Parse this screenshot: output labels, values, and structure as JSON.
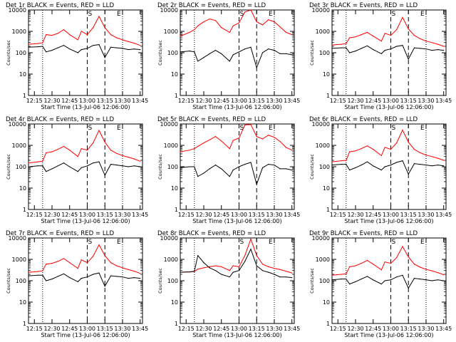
{
  "chart_data": [
    {
      "type": "line",
      "title": "Det 1r BLACK = Events, RED = LLD",
      "xlabel": "Start Time (13-Jul-06 12:06:00)",
      "ylabel": "Counts/sec",
      "yscale": "log",
      "ylim": [
        1,
        10000
      ],
      "xlim": [
        "12:10",
        "13:47"
      ],
      "xticks": [
        "12:15",
        "12:30",
        "12:45",
        "13:00",
        "13:15",
        "13:30",
        "13:45"
      ],
      "yticks": [
        "1",
        "10",
        "100",
        "1000",
        "10000"
      ],
      "event_markers": [
        "S",
        "E"
      ],
      "x": [
        "12:10",
        "12:18",
        "12:22",
        "12:25",
        "12:30",
        "12:35",
        "12:40",
        "12:45",
        "12:52",
        "12:55",
        "13:00",
        "13:05",
        "13:10",
        "13:15",
        "13:20",
        "13:25",
        "13:30",
        "13:35",
        "13:40",
        "13:45"
      ],
      "series": [
        {
          "name": "RED = LLD",
          "color": "#ff0000",
          "values": [
            250,
            270,
            290,
            700,
            650,
            800,
            1200,
            700,
            400,
            1000,
            700,
            1500,
            5000,
            1500,
            700,
            500,
            400,
            330,
            280,
            220
          ]
        },
        {
          "name": "BLACK = Events",
          "color": "#000000",
          "values": [
            180,
            190,
            200,
            110,
            130,
            170,
            220,
            150,
            100,
            140,
            160,
            220,
            240,
            60,
            180,
            170,
            160,
            140,
            150,
            140
          ]
        }
      ]
    },
    {
      "type": "line",
      "title": "Det 2r BLACK = Events, RED = LLD",
      "xlabel": "Start Time (13-Jul-06 12:06:00)",
      "ylabel": "Counts/sec",
      "yscale": "log",
      "ylim": [
        1,
        10000
      ],
      "xlim": [
        "12:10",
        "13:47"
      ],
      "xticks": [
        "12:15",
        "12:30",
        "12:45",
        "13:00",
        "13:15",
        "13:30",
        "13:45"
      ],
      "yticks": [
        "1",
        "10",
        "100",
        "1000",
        "10000"
      ],
      "event_markers": [
        "S",
        "E"
      ],
      "x": [
        "12:10",
        "12:18",
        "12:22",
        "12:25",
        "12:30",
        "12:35",
        "12:40",
        "12:45",
        "12:52",
        "12:55",
        "13:00",
        "13:05",
        "13:10",
        "13:15",
        "13:20",
        "13:25",
        "13:30",
        "13:35",
        "13:40",
        "13:45"
      ],
      "series": [
        {
          "name": "RED = LLD",
          "color": "#ff0000",
          "values": [
            600,
            900,
            1200,
            1800,
            2800,
            3800,
            3200,
            1500,
            900,
            1800,
            2500,
            8000,
            10000,
            2800,
            2000,
            3500,
            2800,
            1600,
            900,
            700
          ]
        },
        {
          "name": "BLACK = Events",
          "color": "#000000",
          "values": [
            110,
            120,
            110,
            40,
            60,
            90,
            130,
            90,
            40,
            80,
            110,
            150,
            180,
            20,
            100,
            150,
            130,
            90,
            90,
            80
          ]
        }
      ]
    },
    {
      "type": "line",
      "title": "Det 3r BLACK = Events, RED = LLD",
      "xlabel": "Start Time (13-Jul-06 12:06:00)",
      "ylabel": "Counts/sec",
      "yscale": "log",
      "ylim": [
        1,
        10000
      ],
      "xlim": [
        "12:10",
        "13:47"
      ],
      "xticks": [
        "12:15",
        "12:30",
        "12:45",
        "13:00",
        "13:15",
        "13:30",
        "13:45"
      ],
      "yticks": [
        "1",
        "10",
        "100",
        "1000",
        "10000"
      ],
      "event_markers": [
        "S",
        "E"
      ],
      "x": [
        "12:10",
        "12:18",
        "12:22",
        "12:25",
        "12:30",
        "12:35",
        "12:40",
        "12:45",
        "12:52",
        "12:55",
        "13:00",
        "13:05",
        "13:10",
        "13:15",
        "13:20",
        "13:25",
        "13:30",
        "13:35",
        "13:40",
        "13:45"
      ],
      "series": [
        {
          "name": "RED = LLD",
          "color": "#ff0000",
          "values": [
            230,
            250,
            270,
            500,
            550,
            700,
            900,
            600,
            350,
            800,
            650,
            1200,
            4500,
            1300,
            650,
            450,
            350,
            300,
            250,
            200
          ]
        },
        {
          "name": "BLACK = Events",
          "color": "#000000",
          "values": [
            160,
            170,
            170,
            100,
            120,
            160,
            210,
            140,
            90,
            130,
            150,
            200,
            220,
            50,
            170,
            160,
            150,
            130,
            140,
            130
          ]
        }
      ]
    },
    {
      "type": "line",
      "title": "Det 4r BLACK = Events, RED = LLD",
      "xlabel": "Start Time (13-Jul-06 12:06:00)",
      "ylabel": "Counts/sec",
      "yscale": "log",
      "ylim": [
        1,
        10000
      ],
      "xlim": [
        "12:10",
        "13:47"
      ],
      "xticks": [
        "12:15",
        "12:30",
        "12:45",
        "13:00",
        "13:15",
        "13:30",
        "13:45"
      ],
      "yticks": [
        "1",
        "10",
        "100",
        "1000",
        "10000"
      ],
      "event_markers": [
        "S",
        "E"
      ],
      "x": [
        "12:10",
        "12:18",
        "12:22",
        "12:25",
        "12:30",
        "12:35",
        "12:40",
        "12:45",
        "12:52",
        "12:55",
        "13:00",
        "13:05",
        "13:10",
        "13:15",
        "13:20",
        "13:25",
        "13:30",
        "13:35",
        "13:40",
        "13:45"
      ],
      "series": [
        {
          "name": "RED = LLD",
          "color": "#ff0000",
          "values": [
            150,
            170,
            180,
            450,
            500,
            650,
            900,
            600,
            300,
            700,
            600,
            1300,
            5000,
            1400,
            600,
            420,
            330,
            280,
            230,
            180
          ]
        },
        {
          "name": "BLACK = Events",
          "color": "#000000",
          "values": [
            100,
            110,
            110,
            60,
            80,
            110,
            150,
            100,
            60,
            90,
            110,
            150,
            170,
            40,
            130,
            120,
            110,
            100,
            110,
            100
          ]
        }
      ]
    },
    {
      "type": "line",
      "title": "Det 5r BLACK = Events, RED = LLD",
      "xlabel": "Start Time (13-Jul-06 12:06:00)",
      "ylabel": "Counts/sec",
      "yscale": "log",
      "ylim": [
        1,
        10000
      ],
      "xlim": [
        "12:10",
        "13:47"
      ],
      "xticks": [
        "12:15",
        "12:30",
        "12:45",
        "13:00",
        "13:15",
        "13:30",
        "13:45"
      ],
      "yticks": [
        "1",
        "10",
        "100",
        "1000",
        "10000"
      ],
      "event_markers": [
        "S",
        "E"
      ],
      "x": [
        "12:10",
        "12:18",
        "12:22",
        "12:25",
        "12:30",
        "12:35",
        "12:40",
        "12:45",
        "12:52",
        "12:55",
        "13:00",
        "13:05",
        "13:10",
        "13:15",
        "13:20",
        "13:25",
        "13:30",
        "13:35",
        "13:40",
        "13:45"
      ],
      "series": [
        {
          "name": "RED = LLD",
          "color": "#ff0000",
          "values": [
            500,
            600,
            700,
            900,
            1300,
            1800,
            2600,
            1600,
            700,
            1700,
            2200,
            9000,
            9500,
            2600,
            2000,
            3000,
            2400,
            1500,
            800,
            600
          ]
        },
        {
          "name": "BLACK = Events",
          "color": "#000000",
          "values": [
            90,
            100,
            100,
            35,
            50,
            80,
            120,
            80,
            35,
            70,
            100,
            130,
            160,
            15,
            90,
            130,
            120,
            80,
            80,
            70
          ]
        }
      ]
    },
    {
      "type": "line",
      "title": "Det 6r BLACK = Events, RED = LLD",
      "xlabel": "Start Time (13-Jul-06 12:06:00)",
      "ylabel": "Counts/sec",
      "yscale": "log",
      "ylim": [
        1,
        10000
      ],
      "xlim": [
        "12:10",
        "13:47"
      ],
      "xticks": [
        "12:15",
        "12:30",
        "12:45",
        "13:00",
        "13:15",
        "13:30",
        "13:45"
      ],
      "yticks": [
        "1",
        "10",
        "100",
        "1000",
        "10000"
      ],
      "event_markers": [
        "S",
        "E"
      ],
      "x": [
        "12:10",
        "12:18",
        "12:22",
        "12:25",
        "12:30",
        "12:35",
        "12:40",
        "12:45",
        "12:52",
        "12:55",
        "13:00",
        "13:05",
        "13:10",
        "13:15",
        "13:20",
        "13:25",
        "13:30",
        "13:35",
        "13:40",
        "13:45"
      ],
      "series": [
        {
          "name": "RED = LLD",
          "color": "#ff0000",
          "values": [
            170,
            190,
            200,
            500,
            550,
            700,
            950,
            650,
            330,
            800,
            650,
            1300,
            5200,
            1400,
            650,
            450,
            350,
            300,
            250,
            200
          ]
        },
        {
          "name": "BLACK = Events",
          "color": "#000000",
          "values": [
            120,
            130,
            130,
            70,
            90,
            120,
            170,
            110,
            70,
            100,
            120,
            160,
            190,
            45,
            140,
            130,
            120,
            110,
            120,
            110
          ]
        }
      ]
    },
    {
      "type": "line",
      "title": "Det 7r BLACK = Events, RED = LLD",
      "xlabel": "Start Time (13-Jul-06 12:06:00)",
      "ylabel": "Counts/sec",
      "yscale": "log",
      "ylim": [
        1,
        10000
      ],
      "xlim": [
        "12:10",
        "13:47"
      ],
      "xticks": [
        "12:15",
        "12:30",
        "12:45",
        "13:00",
        "13:15",
        "13:30",
        "13:45"
      ],
      "yticks": [
        "1",
        "10",
        "100",
        "1000",
        "10000"
      ],
      "event_markers": [
        "S",
        "E"
      ],
      "x": [
        "12:10",
        "12:18",
        "12:22",
        "12:25",
        "12:30",
        "12:35",
        "12:40",
        "12:45",
        "12:52",
        "12:55",
        "13:00",
        "13:05",
        "13:10",
        "13:15",
        "13:20",
        "13:25",
        "13:30",
        "13:35",
        "13:40",
        "13:45"
      ],
      "series": [
        {
          "name": "RED = LLD",
          "color": "#ff0000",
          "values": [
            250,
            270,
            290,
            600,
            650,
            800,
            1100,
            700,
            380,
            950,
            700,
            1400,
            4800,
            1500,
            700,
            500,
            400,
            330,
            280,
            220
          ]
        },
        {
          "name": "BLACK = Events",
          "color": "#000000",
          "values": [
            170,
            180,
            180,
            100,
            120,
            160,
            210,
            140,
            90,
            130,
            150,
            200,
            230,
            55,
            170,
            160,
            150,
            130,
            140,
            130
          ]
        }
      ]
    },
    {
      "type": "line",
      "title": "Det 8r BLACK = Events, RED = LLD",
      "xlabel": "Start Time (13-Jul-06 12:06:00)",
      "ylabel": "Counts/sec",
      "yscale": "log",
      "ylim": [
        1,
        10000
      ],
      "xlim": [
        "12:10",
        "13:47"
      ],
      "xticks": [
        "12:15",
        "12:30",
        "12:45",
        "13:00",
        "13:15",
        "13:30",
        "13:45"
      ],
      "yticks": [
        "1",
        "10",
        "100",
        "1000",
        "10000"
      ],
      "event_markers": [
        "S",
        "E"
      ],
      "x": [
        "12:10",
        "12:18",
        "12:22",
        "12:25",
        "12:30",
        "12:35",
        "12:40",
        "12:45",
        "12:52",
        "12:55",
        "13:00",
        "13:05",
        "13:10",
        "13:15",
        "13:20",
        "13:25",
        "13:30",
        "13:35",
        "13:40",
        "13:45"
      ],
      "series": [
        {
          "name": "RED = LLD",
          "color": "#ff0000",
          "values": [
            250,
            260,
            270,
            350,
            400,
            450,
            500,
            450,
            300,
            500,
            450,
            1500,
            9000,
            1500,
            600,
            450,
            380,
            330,
            280,
            230
          ]
        },
        {
          "name": "BLACK = Events",
          "color": "#000000",
          "values": [
            250,
            260,
            280,
            1500,
            700,
            400,
            300,
            200,
            150,
            250,
            300,
            800,
            3000,
            500,
            300,
            250,
            200,
            150,
            150,
            140
          ]
        }
      ]
    },
    {
      "type": "line",
      "title": "Det 9r BLACK = Events, RED = LLD",
      "xlabel": "Start Time (13-Jul-06 12:06:00)",
      "ylabel": "Counts/sec",
      "yscale": "log",
      "ylim": [
        1,
        10000
      ],
      "xlim": [
        "12:10",
        "13:47"
      ],
      "xticks": [
        "12:15",
        "12:30",
        "12:45",
        "13:00",
        "13:15",
        "13:30",
        "13:45"
      ],
      "yticks": [
        "1",
        "10",
        "100",
        "1000",
        "10000"
      ],
      "event_markers": [
        "S",
        "E"
      ],
      "x": [
        "12:10",
        "12:18",
        "12:22",
        "12:25",
        "12:30",
        "12:35",
        "12:40",
        "12:45",
        "12:52",
        "12:55",
        "13:00",
        "13:05",
        "13:10",
        "13:15",
        "13:20",
        "13:25",
        "13:30",
        "13:35",
        "13:40",
        "13:45"
      ],
      "series": [
        {
          "name": "RED = LLD",
          "color": "#ff0000",
          "values": [
            180,
            200,
            210,
            450,
            500,
            650,
            900,
            600,
            320,
            750,
            650,
            1200,
            4000,
            1300,
            600,
            430,
            340,
            290,
            240,
            190
          ]
        },
        {
          "name": "BLACK = Events",
          "color": "#000000",
          "values": [
            110,
            120,
            120,
            70,
            90,
            120,
            160,
            110,
            70,
            100,
            110,
            150,
            180,
            45,
            130,
            120,
            110,
            100,
            110,
            100
          ]
        }
      ]
    }
  ]
}
